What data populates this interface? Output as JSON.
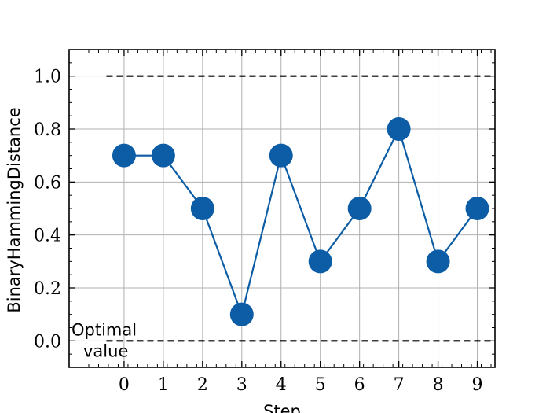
{
  "chart_data": {
    "type": "line",
    "xlabel": "Step",
    "ylabel": "BinaryHammingDistance",
    "x": [
      0,
      1,
      2,
      3,
      4,
      5,
      6,
      7,
      8,
      9
    ],
    "series": [
      {
        "values": [
          0.7,
          0.7,
          0.5,
          0.1,
          0.7,
          0.3,
          0.5,
          0.8,
          0.3,
          0.5
        ],
        "color": "#0C5DA5"
      }
    ],
    "reference_lines": [
      {
        "y": 1.0,
        "style": "dashed",
        "color": "#000000"
      },
      {
        "y": 0.0,
        "style": "dashed",
        "color": "#000000"
      }
    ],
    "annotations": [
      {
        "text_line1": "Optimal",
        "text_line2": "value"
      }
    ],
    "xticks": [
      "0",
      "1",
      "2",
      "3",
      "4",
      "5",
      "6",
      "7",
      "8",
      "9"
    ],
    "yticks": [
      "0.0",
      "0.2",
      "0.4",
      "0.6",
      "0.8",
      "1.0"
    ],
    "xlim": [
      -1.4,
      9.45
    ],
    "ylim": [
      -0.1,
      1.1
    ],
    "grid": true
  }
}
